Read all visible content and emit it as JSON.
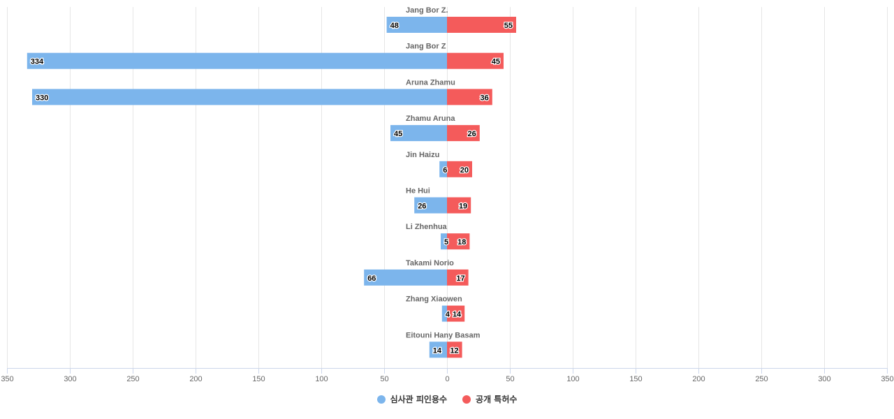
{
  "colors": {
    "left": "#7cb5ec",
    "right": "#f45b5b",
    "grid": "#e6e6e6",
    "axis": "#ccd6eb"
  },
  "chart_data": {
    "type": "bar",
    "orientation": "horizontal-diverging",
    "categories": [
      "Jang Bor Z.",
      "Jang Bor Z",
      "Aruna Zhamu",
      "Zhamu Aruna",
      "Jin Haizu",
      "He Hui",
      "Li Zhenhua",
      "Takami Norio",
      "Zhang Xiaowen",
      "Eitouni Hany Basam"
    ],
    "series": [
      {
        "name": "심사관 피인용수",
        "side": "left",
        "values": [
          48,
          334,
          330,
          45,
          6,
          26,
          5,
          66,
          4,
          14
        ]
      },
      {
        "name": "공개 특허수",
        "side": "right",
        "values": [
          55,
          45,
          36,
          26,
          20,
          19,
          18,
          17,
          14,
          12
        ]
      }
    ],
    "xlim": [
      -350,
      350
    ],
    "xticks": [
      -350,
      -300,
      -250,
      -200,
      -150,
      -100,
      -50,
      0,
      50,
      100,
      150,
      200,
      250,
      300,
      350
    ],
    "xtick_labels": [
      "350",
      "300",
      "250",
      "200",
      "150",
      "100",
      "50",
      "0",
      "50",
      "100",
      "150",
      "200",
      "250",
      "300",
      "350"
    ],
    "grid": true,
    "legend": "bottom-center"
  }
}
